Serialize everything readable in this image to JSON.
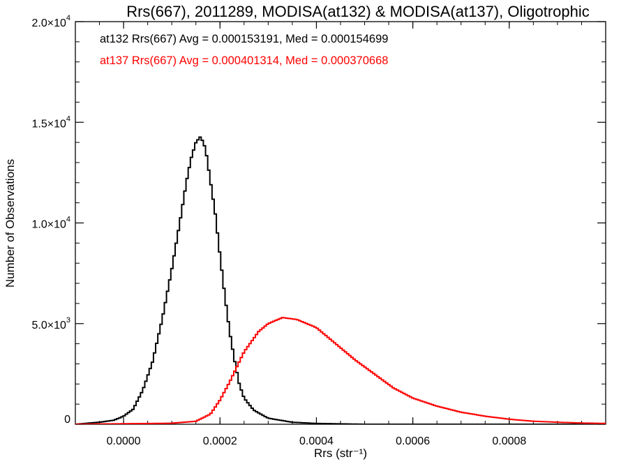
{
  "chart_data": {
    "type": "line",
    "title": "Rrs(667), 2011289, MODISA(at132) & MODISA(at137), Oligotrophic",
    "xlabel": "Rrs (str⁻¹)",
    "ylabel": "Number of Observations",
    "xlim": [
      -0.0001,
      0.001
    ],
    "ylim": [
      0,
      20000
    ],
    "grid": false,
    "legend_position": "top-left",
    "x_ticks": [
      {
        "value": 0.0,
        "label": "0.0000"
      },
      {
        "value": 0.0002,
        "label": "0.0002"
      },
      {
        "value": 0.0004,
        "label": "0.0004"
      },
      {
        "value": 0.0006,
        "label": "0.0006"
      },
      {
        "value": 0.0008,
        "label": "0.0008"
      }
    ],
    "y_ticks": [
      {
        "value": 0,
        "mantissa": "0",
        "exponent": ""
      },
      {
        "value": 5000,
        "mantissa": "5.0×10",
        "exponent": "3"
      },
      {
        "value": 10000,
        "mantissa": "1.0×10",
        "exponent": "4"
      },
      {
        "value": 15000,
        "mantissa": "1.5×10",
        "exponent": "4"
      },
      {
        "value": 20000,
        "mantissa": "2.0×10",
        "exponent": "4"
      }
    ],
    "annotations": [
      {
        "text": "at132 Rrs(667) Avg = 0.000153191, Med = 0.000154699",
        "color": "#000000"
      },
      {
        "text": "at137 Rrs(667) Avg = 0.000401314, Med = 0.000370668",
        "color": "#ff0000"
      }
    ],
    "series": [
      {
        "name": "at132",
        "color": "#000000",
        "x": [
          -0.0001,
          -5e-05,
          -2e-05,
          0.0,
          2e-05,
          4e-05,
          6e-05,
          8e-05,
          0.0001,
          0.00012,
          0.00013,
          0.00014,
          0.00015,
          0.00016,
          0.00017,
          0.00018,
          0.00019,
          0.0002,
          0.00021,
          0.00022,
          0.00023,
          0.00024,
          0.00025,
          0.00027,
          0.0003,
          0.00035,
          0.0004,
          0.0005,
          0.001
        ],
        "y": [
          0,
          100,
          200,
          400,
          750,
          1700,
          3100,
          5200,
          7700,
          10500,
          12000,
          13200,
          14000,
          14300,
          13700,
          12100,
          10500,
          8400,
          6400,
          4600,
          3200,
          2000,
          1300,
          700,
          300,
          100,
          40,
          0,
          0
        ]
      },
      {
        "name": "at137",
        "color": "#ff0000",
        "x": [
          -0.0001,
          0.0001,
          0.00015,
          0.00018,
          0.0002,
          0.00022,
          0.00025,
          0.00028,
          0.0003,
          0.00033,
          0.00036,
          0.0004,
          0.00044,
          0.00048,
          0.00052,
          0.00056,
          0.0006,
          0.00065,
          0.0007,
          0.00075,
          0.0008,
          0.00085,
          0.0009,
          0.00095,
          0.001
        ],
        "y": [
          0,
          50,
          150,
          500,
          1200,
          2100,
          3600,
          4600,
          5000,
          5300,
          5200,
          4800,
          4000,
          3200,
          2500,
          1800,
          1300,
          900,
          600,
          400,
          250,
          150,
          100,
          60,
          40
        ]
      }
    ]
  }
}
